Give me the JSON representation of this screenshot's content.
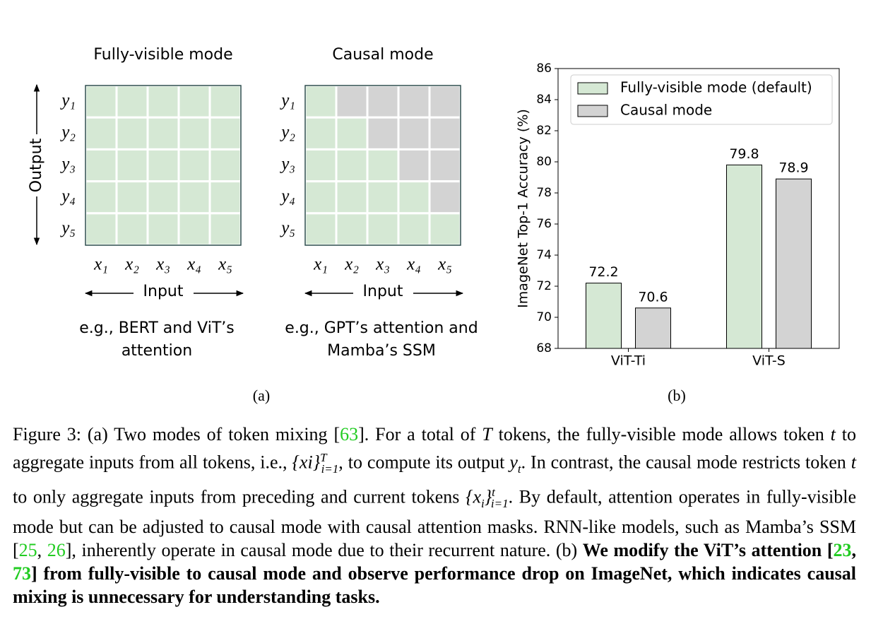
{
  "panel_a": {
    "output_label": "Output",
    "panels": [
      {
        "title": "Fully-visible mode",
        "row_labels": [
          "y₁",
          "y₂",
          "y₃",
          "y₄",
          "y₅"
        ],
        "col_labels": [
          "x₁",
          "x₂",
          "x₃",
          "x₄",
          "x₅"
        ],
        "input_label": "Input",
        "example": [
          "e.g., BERT and ViT’s",
          "attention"
        ]
      },
      {
        "title": "Causal mode",
        "row_labels": [
          "y₁",
          "y₂",
          "y₃",
          "y₄",
          "y₅"
        ],
        "col_labels": [
          "x₁",
          "x₂",
          "x₃",
          "x₄",
          "x₅"
        ],
        "input_label": "Input",
        "example": [
          "e.g., GPT’s attention and",
          "Mamba’s SSM"
        ]
      }
    ],
    "sublabel": "(a)"
  },
  "chart_data": {
    "type": "bar",
    "ylabel": "ImageNet Top-1 Accuracy (%)",
    "categories": [
      "ViT-Ti",
      "ViT-S"
    ],
    "series": [
      {
        "name": "Fully-visible mode (default)",
        "color": "#d5e8d4",
        "values": [
          72.2,
          79.8
        ]
      },
      {
        "name": "Causal mode",
        "color": "#d3d3d3",
        "values": [
          70.6,
          78.9
        ]
      }
    ],
    "ylim": [
      68,
      86
    ],
    "yticks": [
      68,
      70,
      72,
      74,
      76,
      78,
      80,
      82,
      84,
      86
    ],
    "legend": "upper left",
    "sublabel": "(b)"
  },
  "caption": {
    "segments": [
      "Figure 3: (a) Two modes of token mixing [",
      "63",
      "]. For a total of ",
      "T",
      " tokens, the fully-visible mode allows token ",
      "t",
      " to aggregate inputs from all tokens, i.e., ",
      "{xi}",
      "T",
      "i=1",
      ", to compute its output ",
      "y",
      "t",
      ". In contrast, the causal mode restricts token ",
      "t",
      " to only aggregate inputs from preceding and current tokens ",
      "{x",
      "i",
      "}",
      "t",
      "i=1",
      ". By default, attention operates in fully-visible mode but can be adjusted to causal mode with causal attention masks. RNN-like models, such as Mamba’s SSM [",
      "25",
      ", ",
      "26",
      "], inherently operate in causal mode due to their recurrent nature. (b) ",
      "We modify the ViT’s attention [",
      "23",
      ", ",
      "73",
      "] from fully-visible to causal mode and observe performance drop on ImageNet, which indicates causal mixing is unnecessary for understanding tasks."
    ]
  }
}
